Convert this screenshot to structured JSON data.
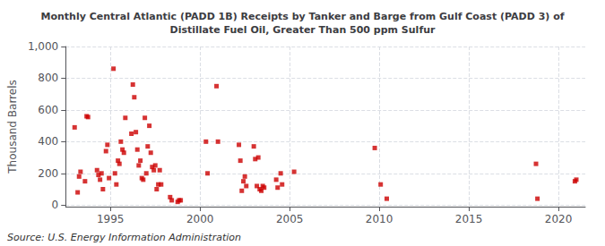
{
  "chart_data": {
    "type": "scatter",
    "title": "Monthly Central Atlantic (PADD 1B) Receipts by Tanker and Barge from Gulf Coast (PADD 3) of\nDistillate Fuel Oil, Greater Than 500 ppm Sulfur",
    "ylabel": "Thousand Barrels",
    "source": "Source: U.S. Energy Information Administration",
    "color": "#cc0000",
    "marker": "square",
    "grid": true,
    "xlim": [
      1992.5,
      2021.5
    ],
    "ylim": [
      -10,
      1000
    ],
    "xticks": [
      1995,
      2000,
      2005,
      2010,
      2015,
      2020
    ],
    "yticks": [
      0,
      200,
      400,
      600,
      800,
      {
        "value": 1000,
        "label": "1,000"
      }
    ],
    "x": [
      1993.0,
      1993.17,
      1993.25,
      1993.33,
      1993.58,
      1993.67,
      1993.75,
      1994.25,
      1994.33,
      1994.42,
      1994.5,
      1994.58,
      1994.75,
      1994.83,
      1994.92,
      1995.17,
      1995.25,
      1995.33,
      1995.42,
      1995.5,
      1995.58,
      1995.67,
      1995.75,
      1995.83,
      1996.17,
      1996.25,
      1996.33,
      1996.42,
      1996.5,
      1996.58,
      1996.67,
      1996.75,
      1996.83,
      1996.92,
      1997.0,
      1997.08,
      1997.17,
      1997.25,
      1997.33,
      1997.42,
      1997.5,
      1997.58,
      1997.67,
      1997.75,
      1997.83,
      1998.33,
      1998.42,
      1998.75,
      1998.83,
      1998.92,
      2000.33,
      2000.42,
      2000.92,
      2001.0,
      2002.17,
      2002.25,
      2002.33,
      2002.42,
      2002.5,
      2002.58,
      2003.0,
      2003.08,
      2003.17,
      2003.25,
      2003.33,
      2003.42,
      2003.5,
      2003.58,
      2004.25,
      2004.33,
      2004.5,
      2004.58,
      2005.25,
      2009.75,
      2010.08,
      2010.42,
      2018.75,
      2018.83,
      2020.92,
      2021.0
    ],
    "values": [
      490,
      80,
      180,
      210,
      150,
      560,
      555,
      220,
      190,
      160,
      200,
      100,
      340,
      380,
      170,
      860,
      200,
      130,
      280,
      260,
      400,
      350,
      330,
      550,
      450,
      760,
      680,
      460,
      350,
      250,
      280,
      170,
      160,
      550,
      200,
      370,
      500,
      330,
      240,
      220,
      250,
      100,
      130,
      220,
      130,
      50,
      30,
      20,
      30,
      30,
      400,
      200,
      750,
      400,
      380,
      280,
      90,
      150,
      180,
      120,
      370,
      290,
      120,
      300,
      100,
      90,
      120,
      110,
      160,
      110,
      200,
      130,
      210,
      360,
      130,
      40,
      260,
      40,
      150,
      160
    ]
  }
}
